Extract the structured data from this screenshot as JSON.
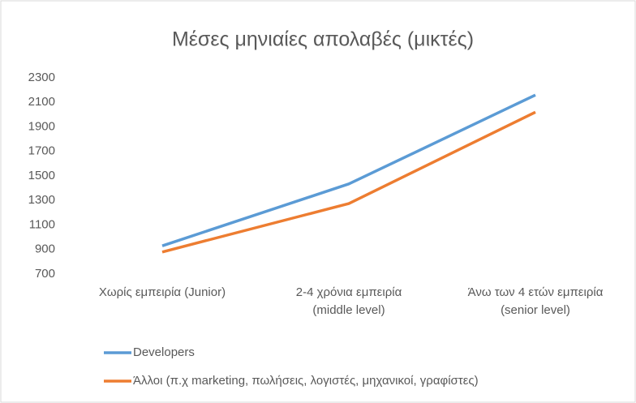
{
  "chart_data": {
    "type": "line",
    "title": "Μέσες μηνιαίες απολαβές (μικτές)",
    "categories": [
      "Χωρίς εμπειρία (Junior)",
      "2-4 χρόνια εμπειρία\n(middle level)",
      "Άνω των 4 ετών εμπειρία\n(senior level)"
    ],
    "series": [
      {
        "name": "Developers",
        "color": "#5b9bd5",
        "values": [
          930,
          1435,
          2160
        ]
      },
      {
        "name": "Άλλοι (π.χ marketing, πωλήσεις, λογιστές, μηχανικοί, γραφίστες)",
        "color": "#ed7d31",
        "values": [
          880,
          1275,
          2020
        ]
      }
    ],
    "ylim": [
      700,
      2300
    ],
    "yticks": [
      700,
      900,
      1100,
      1300,
      1500,
      1700,
      1900,
      2100,
      2300
    ],
    "grid": false,
    "legend": "bottom"
  }
}
